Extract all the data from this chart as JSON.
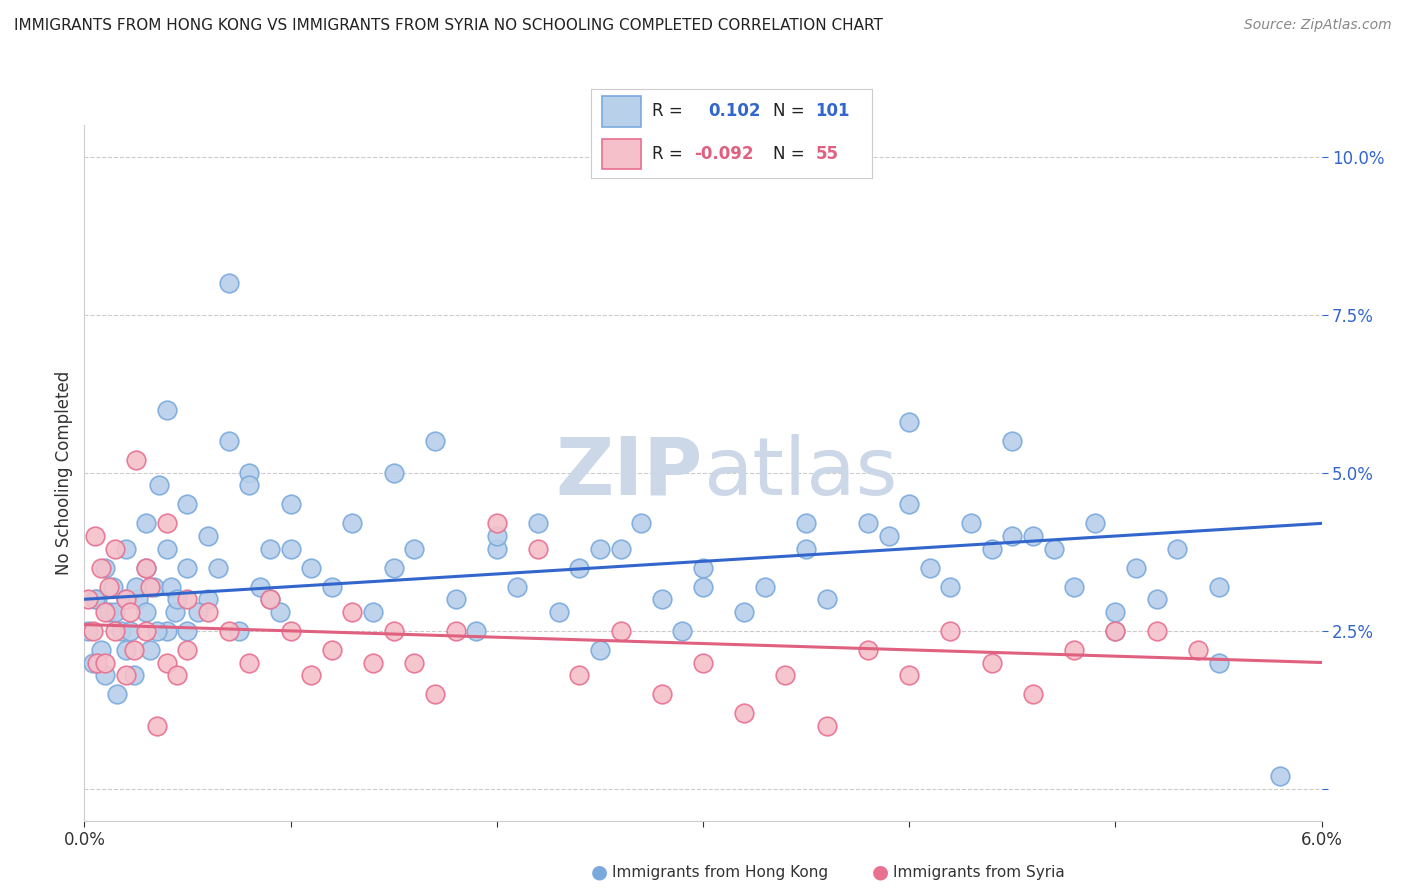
{
  "title": "IMMIGRANTS FROM HONG KONG VS IMMIGRANTS FROM SYRIA NO SCHOOLING COMPLETED CORRELATION CHART",
  "source": "Source: ZipAtlas.com",
  "ylabel": "No Schooling Completed",
  "xlim": [
    0.0,
    0.06
  ],
  "ylim": [
    -0.005,
    0.105
  ],
  "yticks": [
    0.0,
    0.025,
    0.05,
    0.075,
    0.1
  ],
  "ytick_labels": [
    "",
    "2.5%",
    "5.0%",
    "7.5%",
    "10.0%"
  ],
  "xticks": [
    0.0,
    0.01,
    0.02,
    0.03,
    0.04,
    0.05,
    0.06
  ],
  "xtick_labels": [
    "0.0%",
    "",
    "",
    "",
    "",
    "",
    "6.0%"
  ],
  "hk_R": 0.102,
  "hk_N": 101,
  "sy_R": -0.092,
  "sy_N": 55,
  "hk_color": "#b8d0ea",
  "hk_edge_color": "#7aaadd",
  "sy_color": "#f5c0ca",
  "sy_edge_color": "#e87090",
  "hk_line_color": "#3366cc",
  "sy_line_color": "#e06080",
  "background_color": "#ffffff",
  "watermark_color": "#ccd8e8",
  "hk_scatter_x": [
    0.0002,
    0.0004,
    0.0006,
    0.0008,
    0.001,
    0.001,
    0.0012,
    0.0014,
    0.0016,
    0.0018,
    0.002,
    0.002,
    0.002,
    0.0022,
    0.0024,
    0.0026,
    0.003,
    0.003,
    0.003,
    0.0032,
    0.0034,
    0.0036,
    0.004,
    0.004,
    0.004,
    0.0042,
    0.0044,
    0.005,
    0.005,
    0.005,
    0.006,
    0.006,
    0.007,
    0.007,
    0.008,
    0.008,
    0.009,
    0.009,
    0.01,
    0.01,
    0.011,
    0.012,
    0.013,
    0.014,
    0.015,
    0.016,
    0.017,
    0.018,
    0.019,
    0.02,
    0.021,
    0.022,
    0.023,
    0.024,
    0.025,
    0.026,
    0.027,
    0.028,
    0.029,
    0.03,
    0.032,
    0.033,
    0.035,
    0.036,
    0.038,
    0.039,
    0.04,
    0.041,
    0.042,
    0.043,
    0.044,
    0.045,
    0.046,
    0.047,
    0.048,
    0.049,
    0.05,
    0.051,
    0.052,
    0.053,
    0.0005,
    0.0015,
    0.0025,
    0.0035,
    0.0045,
    0.0055,
    0.0065,
    0.0075,
    0.0085,
    0.0095,
    0.015,
    0.02,
    0.025,
    0.03,
    0.035,
    0.04,
    0.045,
    0.05,
    0.055,
    0.055,
    0.058
  ],
  "hk_scatter_y": [
    0.025,
    0.02,
    0.03,
    0.022,
    0.018,
    0.035,
    0.028,
    0.032,
    0.015,
    0.025,
    0.03,
    0.022,
    0.038,
    0.025,
    0.018,
    0.03,
    0.035,
    0.042,
    0.028,
    0.022,
    0.032,
    0.048,
    0.025,
    0.038,
    0.06,
    0.032,
    0.028,
    0.035,
    0.045,
    0.025,
    0.04,
    0.03,
    0.08,
    0.055,
    0.05,
    0.048,
    0.03,
    0.038,
    0.038,
    0.045,
    0.035,
    0.032,
    0.042,
    0.028,
    0.05,
    0.038,
    0.055,
    0.03,
    0.025,
    0.038,
    0.032,
    0.042,
    0.028,
    0.035,
    0.022,
    0.038,
    0.042,
    0.03,
    0.025,
    0.032,
    0.028,
    0.032,
    0.038,
    0.03,
    0.042,
    0.04,
    0.058,
    0.035,
    0.032,
    0.042,
    0.038,
    0.055,
    0.04,
    0.038,
    0.032,
    0.042,
    0.025,
    0.035,
    0.03,
    0.038,
    0.03,
    0.028,
    0.032,
    0.025,
    0.03,
    0.028,
    0.035,
    0.025,
    0.032,
    0.028,
    0.035,
    0.04,
    0.038,
    0.035,
    0.042,
    0.045,
    0.04,
    0.028,
    0.032,
    0.02,
    0.002
  ],
  "sy_scatter_x": [
    0.0002,
    0.0004,
    0.0006,
    0.0008,
    0.001,
    0.001,
    0.0012,
    0.0015,
    0.002,
    0.002,
    0.0022,
    0.0024,
    0.003,
    0.003,
    0.0032,
    0.004,
    0.004,
    0.005,
    0.005,
    0.006,
    0.007,
    0.008,
    0.009,
    0.01,
    0.011,
    0.012,
    0.013,
    0.014,
    0.015,
    0.016,
    0.017,
    0.018,
    0.02,
    0.022,
    0.024,
    0.026,
    0.028,
    0.03,
    0.032,
    0.034,
    0.036,
    0.038,
    0.04,
    0.042,
    0.044,
    0.046,
    0.048,
    0.05,
    0.052,
    0.054,
    0.0005,
    0.0015,
    0.0025,
    0.0035,
    0.0045
  ],
  "sy_scatter_y": [
    0.03,
    0.025,
    0.02,
    0.035,
    0.028,
    0.02,
    0.032,
    0.025,
    0.03,
    0.018,
    0.028,
    0.022,
    0.035,
    0.025,
    0.032,
    0.042,
    0.02,
    0.03,
    0.022,
    0.028,
    0.025,
    0.02,
    0.03,
    0.025,
    0.018,
    0.022,
    0.028,
    0.02,
    0.025,
    0.02,
    0.015,
    0.025,
    0.042,
    0.038,
    0.018,
    0.025,
    0.015,
    0.02,
    0.012,
    0.018,
    0.01,
    0.022,
    0.018,
    0.025,
    0.02,
    0.015,
    0.022,
    0.025,
    0.025,
    0.022,
    0.04,
    0.038,
    0.052,
    0.01,
    0.018
  ],
  "hk_line_x0": 0.0,
  "hk_line_y0": 0.03,
  "hk_line_x1": 0.06,
  "hk_line_y1": 0.042,
  "sy_line_x0": 0.0,
  "sy_line_y0": 0.026,
  "sy_line_x1": 0.06,
  "sy_line_y1": 0.02
}
